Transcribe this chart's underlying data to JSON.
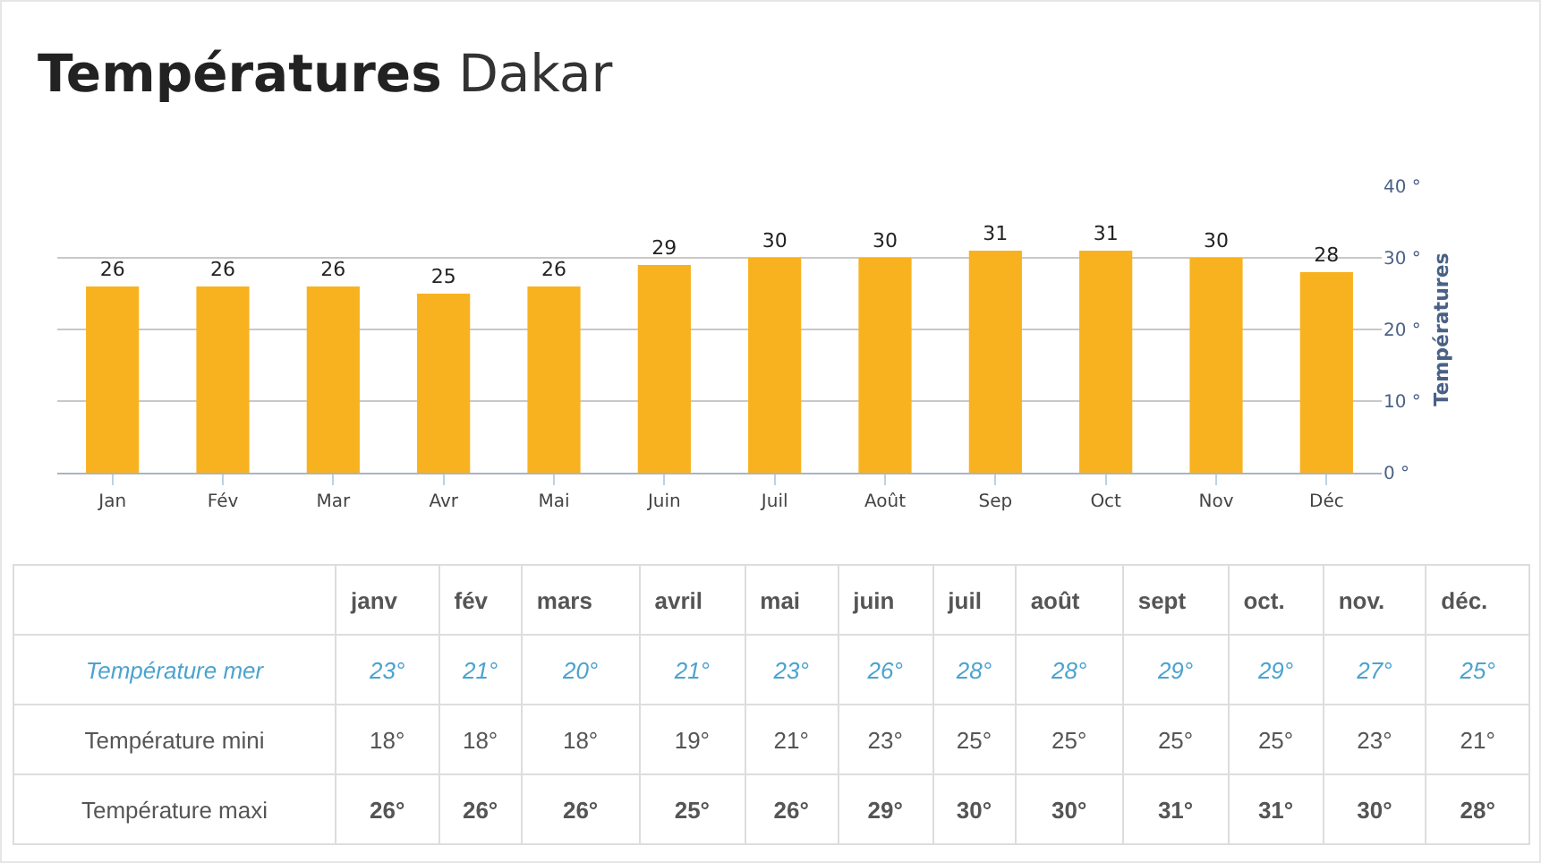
{
  "chart_data": [
    {
      "type": "bar",
      "title": "Températures",
      "subtitle": "Dakar",
      "ylabel": "Températures",
      "categories": [
        "Jan",
        "Fév",
        "Mar",
        "Avr",
        "Mai",
        "Juin",
        "Juil",
        "Août",
        "Sep",
        "Oct",
        "Nov",
        "Déc"
      ],
      "values": [
        26,
        26,
        26,
        25,
        26,
        29,
        30,
        30,
        31,
        31,
        30,
        28
      ],
      "color": "#f9b21f",
      "data_labels": true,
      "ylim": [
        0,
        40
      ],
      "yticks": [
        {
          "value": 0,
          "label": "0 °"
        },
        {
          "value": 10,
          "label": "10 °"
        },
        {
          "value": 20,
          "label": "20 °"
        },
        {
          "value": 30,
          "label": "30 °"
        },
        {
          "value": 40,
          "label": "40 °"
        }
      ],
      "grid": "y",
      "legend": false
    },
    {
      "type": "heatmap",
      "categories": [
        "janv",
        "fév",
        "mars",
        "avril",
        "mai",
        "juin",
        "juil",
        "août",
        "sept",
        "oct.",
        "nov.",
        "déc."
      ],
      "y_categories": [
        "Température mer",
        "Température mini",
        "Température maxi"
      ],
      "cells": [
        [
          23,
          21,
          20,
          21,
          23,
          26,
          28,
          28,
          29,
          29,
          27,
          25
        ],
        [
          18,
          18,
          18,
          19,
          21,
          23,
          25,
          25,
          25,
          25,
          23,
          21
        ],
        [
          26,
          26,
          26,
          25,
          26,
          29,
          30,
          30,
          31,
          31,
          30,
          28
        ]
      ],
      "cell_labels": [
        [
          "23°",
          "21°",
          "20°",
          "21°",
          "23°",
          "26°",
          "28°",
          "28°",
          "29°",
          "29°",
          "27°",
          "25°"
        ],
        [
          "18°",
          "18°",
          "18°",
          "19°",
          "21°",
          "23°",
          "25°",
          "25°",
          "25°",
          "25°",
          "23°",
          "21°"
        ],
        [
          "26°",
          "26°",
          "26°",
          "25°",
          "26°",
          "29°",
          "30°",
          "30°",
          "31°",
          "31°",
          "30°",
          "28°"
        ]
      ]
    }
  ]
}
